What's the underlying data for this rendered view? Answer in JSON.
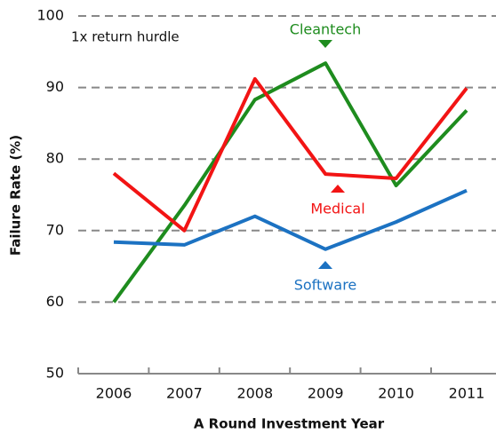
{
  "chart_data": {
    "type": "line",
    "annotation": "1x return hurdle",
    "x_label": "A Round Investment Year",
    "y_label": "Failure Rate (%)",
    "categories": [
      "2006",
      "2007",
      "2008",
      "2009",
      "2010",
      "2011"
    ],
    "series": [
      {
        "name": "Cleantech",
        "color": "#1e8c1e",
        "values": [
          60,
          73.5,
          88.3,
          93.4,
          76.3,
          86.8
        ]
      },
      {
        "name": "Medical",
        "color": "#f21414",
        "values": [
          78,
          70,
          91.2,
          77.9,
          77.3,
          89.9
        ]
      },
      {
        "name": "Software",
        "color": "#1c72c2",
        "values": [
          68.4,
          68,
          72,
          67.4,
          71.2,
          75.6
        ]
      }
    ],
    "ylim": [
      50,
      100
    ],
    "yticks": [
      50,
      60,
      70,
      80,
      90,
      100
    ],
    "grid": true
  }
}
